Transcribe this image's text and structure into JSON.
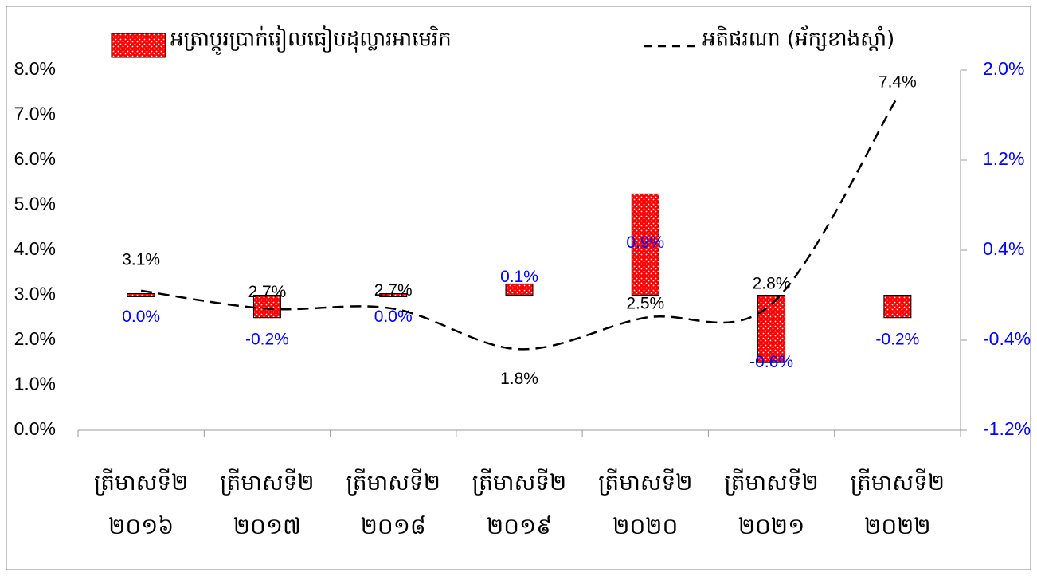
{
  "chart_data": {
    "type": "combo",
    "categories": [
      [
        "ត្រីមាសទី២",
        "២០១៦"
      ],
      [
        "ត្រីមាសទី២",
        "២០១៧"
      ],
      [
        "ត្រីមាសទី២",
        "២០១៨"
      ],
      [
        "ត្រីមាសទី២",
        "២០១៩"
      ],
      [
        "ត្រីមាសទី២",
        "២០២០"
      ],
      [
        "ត្រីមាសទី២",
        "២០២១"
      ],
      [
        "ត្រីមាសទី២",
        "២០២២"
      ]
    ],
    "series": [
      {
        "name": "អត្រាប្តូរប្រាក់រៀលធៀបដុល្លារអាមេរិក",
        "type": "bar",
        "axis": "y2",
        "color": "#ff0000",
        "values": [
          0.0,
          -0.2,
          0.0,
          0.1,
          0.9,
          -0.6,
          -0.2
        ],
        "value_labels": [
          "0.0%",
          "-0.2%",
          "0.0%",
          "0.1%",
          "0.9%",
          "-0.6%",
          "-0.2%"
        ]
      },
      {
        "name": "អតិផរណា (អ័ក្សខាងស្តាំ)",
        "type": "line",
        "color": "#000000",
        "values": [
          3.1,
          2.7,
          2.7,
          1.8,
          2.5,
          2.8,
          7.4
        ],
        "value_labels": [
          "3.1%",
          "2.7%",
          "2.7%",
          "1.8%",
          "2.5%",
          "2.8%",
          "7.4%"
        ]
      }
    ],
    "ylim": [
      0,
      8
    ],
    "yticks": [
      {
        "value": 0,
        "label": "0.0%"
      },
      {
        "value": 1,
        "label": "1.0%"
      },
      {
        "value": 2,
        "label": "2.0%"
      },
      {
        "value": 3,
        "label": "3.0%"
      },
      {
        "value": 4,
        "label": "4.0%"
      },
      {
        "value": 5,
        "label": "5.0%"
      },
      {
        "value": 6,
        "label": "6.0%"
      },
      {
        "value": 7,
        "label": "7.0%"
      },
      {
        "value": 8,
        "label": "8.0%"
      }
    ],
    "y2lim": [
      -1.2,
      2.0
    ],
    "y2ticks": [
      {
        "value": -1.2,
        "label": "-1.2%"
      },
      {
        "value": -0.4,
        "label": "-0.4%"
      },
      {
        "value": 0.4,
        "label": "0.4%"
      },
      {
        "value": 1.2,
        "label": "1.2%"
      },
      {
        "value": 2.0,
        "label": "2.0%"
      }
    ],
    "y2_color": "#0000ff"
  }
}
